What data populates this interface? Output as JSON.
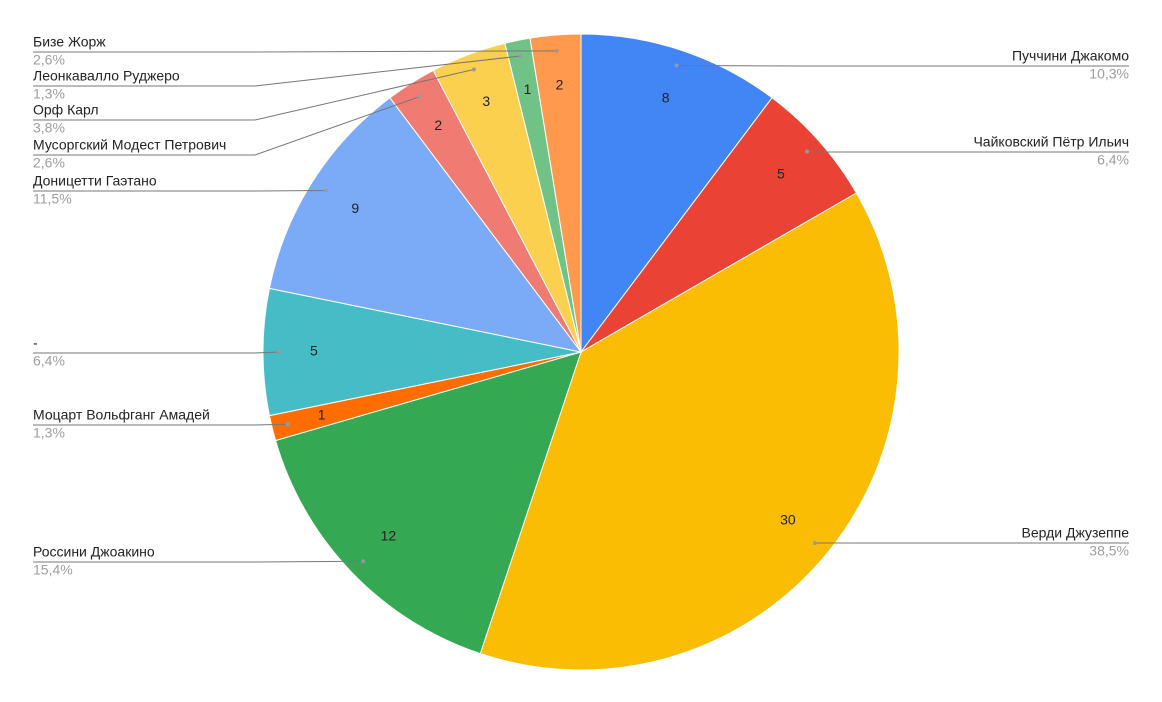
{
  "chart_data": {
    "type": "pie",
    "categories": [
      "Пуччини Джакомо",
      "Чайковский Пётр Ильич",
      "Верди Джузеппе",
      "Россини Джоакино",
      "Моцарт Вольфганг Амадей",
      "-",
      "Доницетти Гаэтано",
      "Мусоргский Модест Петрович",
      "Орф Карл",
      "Леонкавалло Руджеро",
      "Бизе Жорж"
    ],
    "values": [
      8,
      5,
      30,
      12,
      1,
      5,
      9,
      2,
      3,
      1,
      2
    ],
    "percent_labels": [
      "10,3%",
      "6,4%",
      "38,5%",
      "15,4%",
      "1,3%",
      "6,4%",
      "11,5%",
      "2,6%",
      "3,8%",
      "1,3%",
      "2,6%"
    ],
    "colors": [
      "#4285f4",
      "#ea4335",
      "#fbbc04",
      "#34a853",
      "#ff6d01",
      "#46bdc6",
      "#7baaf7",
      "#f07b72",
      "#fcd04f",
      "#71c287",
      "#ff994d"
    ]
  }
}
